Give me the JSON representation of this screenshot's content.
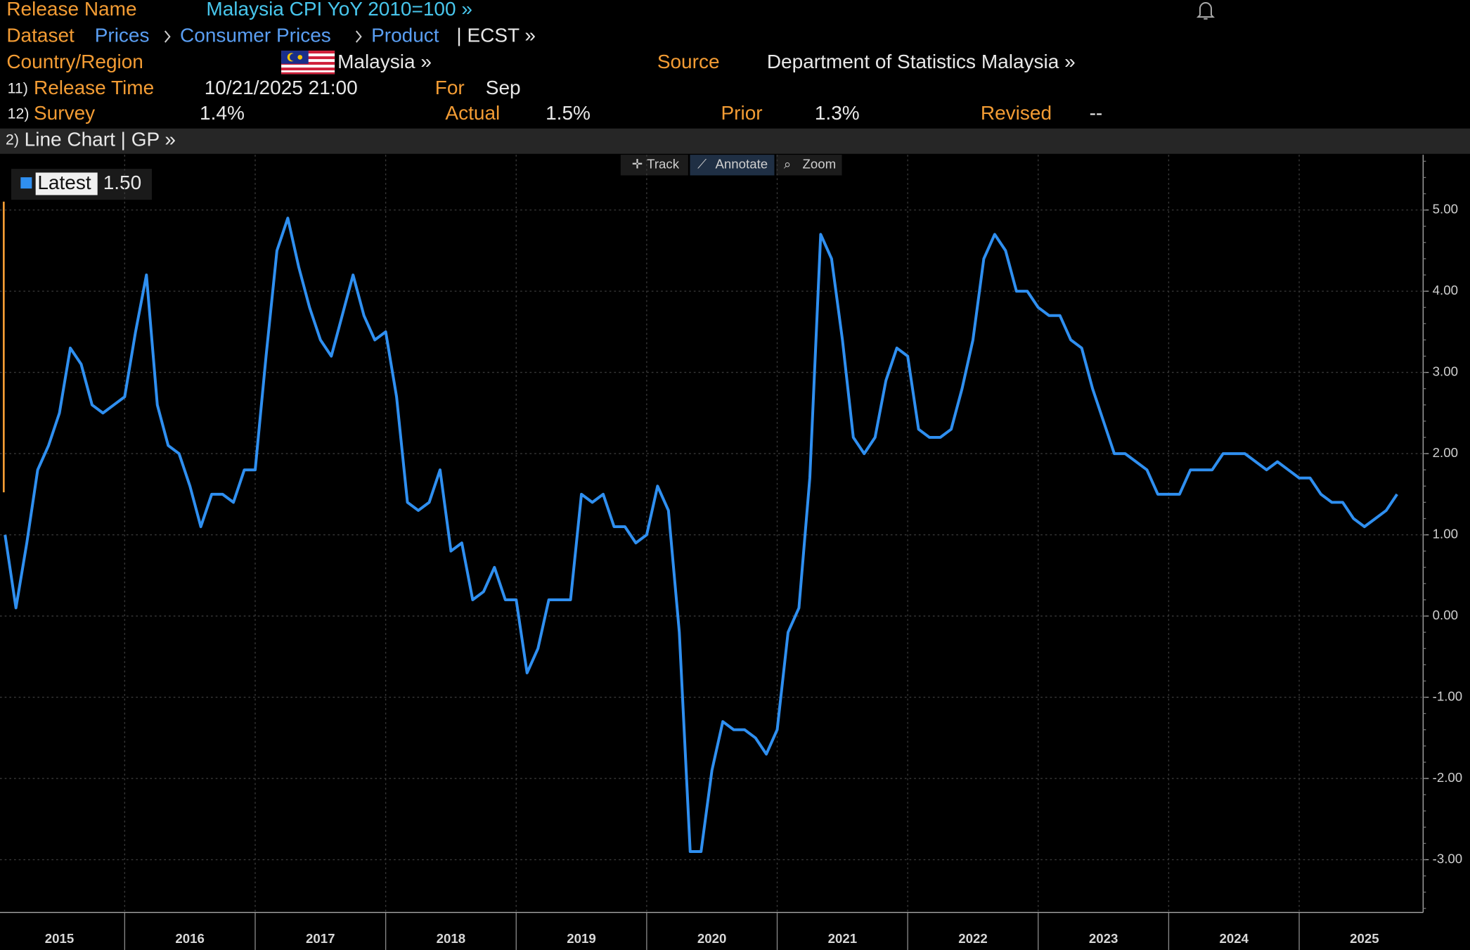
{
  "header": {
    "release_name_label": "Release Name",
    "release_name": "Malaysia CPI YoY 2010=100 »",
    "dataset_label": "Dataset",
    "dataset_path": [
      "Prices",
      "Consumer Prices",
      "Product"
    ],
    "dataset_ticker": "| ECST »",
    "country_label": "Country/Region",
    "country": "Malaysia »",
    "source_label": "Source",
    "source": "Department of Statistics Malaysia »",
    "release_time_num": "11)",
    "release_time_label": "Release Time",
    "release_time": "10/21/2025 21:00",
    "for_label": "For",
    "for": "Sep",
    "survey_num": "12)",
    "survey_label": "Survey",
    "survey": "1.4%",
    "actual_label": "Actual",
    "actual": "1.5%",
    "prior_label": "Prior",
    "prior": "1.3%",
    "revised_label": "Revised",
    "revised": "--",
    "chart_num": "2)",
    "chart_menu": "Line Chart | GP »",
    "toolbar": [
      "Track",
      "Annotate",
      "Zoom"
    ]
  },
  "chart_data": {
    "type": "line",
    "latest_label": "1.50",
    "categories": [
      null,
      null,
      null,
      null,
      null,
      null,
      null,
      null,
      null,
      null,
      null,
      null,
      null,
      null,
      null,
      null,
      null,
      null,
      null,
      null,
      null,
      null,
      null,
      null,
      null,
      null,
      null,
      null,
      null,
      null,
      null,
      null,
      null,
      null,
      null,
      null,
      null,
      null,
      null,
      null,
      null,
      null,
      null,
      null,
      null,
      null,
      null,
      null,
      null,
      null,
      null,
      null,
      null,
      null,
      null,
      null,
      null,
      null,
      null,
      null,
      null,
      null,
      null,
      null,
      null,
      null,
      null,
      null,
      null,
      null,
      null,
      null,
      null,
      null,
      null,
      null,
      null,
      null,
      null,
      null,
      null,
      null,
      null,
      null,
      null,
      null,
      null,
      null,
      null,
      null,
      null,
      null,
      null,
      null,
      null,
      null,
      null,
      null,
      null,
      null,
      null,
      null,
      null,
      null,
      null,
      null,
      null,
      null,
      null,
      null,
      null,
      null,
      null,
      null,
      null,
      null,
      null,
      null,
      null,
      null,
      null,
      null,
      null,
      null,
      null,
      null,
      null,
      null,
      null
    ],
    "year_labels": [
      "2015",
      "2016",
      "2017",
      "2018",
      "2019",
      "2020",
      "2021",
      "2022",
      "2023",
      "2024",
      "2025"
    ],
    "series": [
      {
        "name": "Latest",
        "color": "#2f8ff0",
        "values": [
          1.0,
          0.1,
          0.9,
          1.8,
          2.1,
          2.5,
          3.3,
          3.1,
          2.6,
          2.5,
          2.6,
          2.7,
          3.5,
          4.2,
          2.6,
          2.1,
          2.0,
          1.6,
          1.1,
          1.5,
          1.5,
          1.4,
          1.8,
          1.8,
          3.2,
          4.5,
          4.9,
          4.3,
          3.8,
          3.4,
          3.2,
          3.7,
          4.2,
          3.7,
          3.4,
          3.5,
          2.7,
          1.4,
          1.3,
          1.4,
          1.8,
          0.8,
          0.9,
          0.2,
          0.3,
          0.6,
          0.2,
          0.2,
          -0.7,
          -0.4,
          0.2,
          0.2,
          0.2,
          1.5,
          1.4,
          1.5,
          1.1,
          1.1,
          0.9,
          1.0,
          1.6,
          1.3,
          -0.2,
          -2.9,
          -2.9,
          -1.9,
          -1.3,
          -1.4,
          -1.4,
          -1.5,
          -1.7,
          -1.4,
          -0.2,
          0.1,
          1.7,
          4.7,
          4.4,
          3.4,
          2.2,
          2.0,
          2.2,
          2.9,
          3.3,
          3.2,
          2.3,
          2.2,
          2.2,
          2.3,
          2.8,
          3.4,
          4.4,
          4.7,
          4.5,
          4.0,
          4.0,
          3.8,
          3.7,
          3.7,
          3.4,
          3.3,
          2.8,
          2.4,
          2.0,
          2.0,
          1.9,
          1.8,
          1.5,
          1.5,
          1.5,
          1.8,
          1.8,
          1.8,
          2.0,
          2.0,
          2.0,
          1.9,
          1.8,
          1.9,
          1.8,
          1.7,
          1.7,
          1.5,
          1.4,
          1.4,
          1.2,
          1.1,
          1.2,
          1.3,
          1.5
        ]
      }
    ],
    "ylim": [
      -3.65,
      5.68
    ],
    "yticks": [
      {
        "value": -3,
        "label": "-3.00"
      },
      {
        "value": -2,
        "label": "-2.00"
      },
      {
        "value": -1,
        "label": "-1.00"
      },
      {
        "value": 0,
        "label": "0.00"
      },
      {
        "value": 1,
        "label": "1.00"
      },
      {
        "value": 2,
        "label": "2.00"
      },
      {
        "value": 3,
        "label": "3.00"
      },
      {
        "value": 4,
        "label": "4.00"
      },
      {
        "value": 5,
        "label": "5.00"
      }
    ],
    "grid": true
  }
}
